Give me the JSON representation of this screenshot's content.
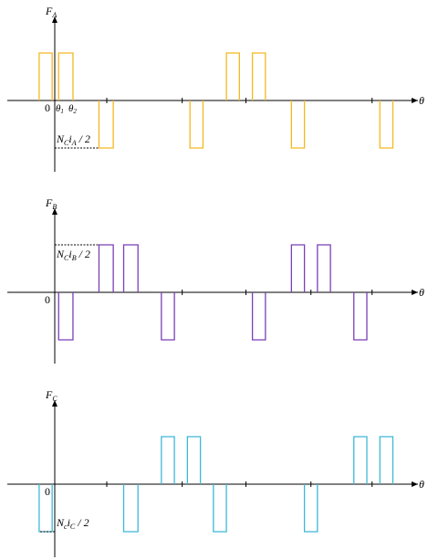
{
  "colors": {
    "a": "#F5B820",
    "b": "#7B3FB8",
    "c": "#3DB8D8",
    "axis": "#000000"
  },
  "panels": [
    {
      "key": "a",
      "axis_letter": "F",
      "axis_sub": "A",
      "origin": "0",
      "theta1": "θ",
      "theta1_sub": "1",
      "theta2": "θ",
      "theta2_sub": "2",
      "level": {
        "N": "N",
        "N_sub": "C",
        "i": "i",
        "i_sub": "A",
        "tail": " / 2"
      },
      "x_arrow": "θ",
      "pulses": [
        {
          "x0": -0.6,
          "x1": -0.1,
          "s": 1
        },
        {
          "x0": 0.15,
          "x1": 0.7,
          "s": 1
        },
        {
          "x0": 1.7,
          "x1": 2.25,
          "s": -1
        },
        {
          "x0": 5.2,
          "x1": 5.7,
          "s": -1
        },
        {
          "x0": 6.6,
          "x1": 7.1,
          "s": 1
        },
        {
          "x0": 7.6,
          "x1": 8.1,
          "s": 1
        },
        {
          "x0": 9.1,
          "x1": 9.6,
          "s": -1
        },
        {
          "x0": 12.5,
          "x1": 13.0,
          "s": -1
        }
      ],
      "ticks": [
        2.0,
        4.9,
        7.35,
        12.2
      ],
      "level_sign": -1
    },
    {
      "key": "b",
      "axis_letter": "F",
      "axis_sub": "B",
      "origin": "0",
      "level": {
        "N": "N",
        "N_sub": "C",
        "i": "i",
        "i_sub": "B",
        "tail": " / 2"
      },
      "x_arrow": "θ",
      "pulses": [
        {
          "x0": 0.15,
          "x1": 0.7,
          "s": -1
        },
        {
          "x0": 1.7,
          "x1": 2.25,
          "s": 1
        },
        {
          "x0": 2.65,
          "x1": 3.2,
          "s": 1
        },
        {
          "x0": 4.1,
          "x1": 4.6,
          "s": -1
        },
        {
          "x0": 7.6,
          "x1": 8.1,
          "s": -1
        },
        {
          "x0": 9.1,
          "x1": 9.6,
          "s": 1
        },
        {
          "x0": 10.1,
          "x1": 10.6,
          "s": 1
        },
        {
          "x0": 11.5,
          "x1": 12.0,
          "s": -1
        }
      ],
      "ticks": [
        4.9,
        7.35,
        9.85,
        12.2
      ],
      "level_sign": 1
    },
    {
      "key": "c",
      "axis_letter": "F",
      "axis_sub": "C",
      "origin": "0",
      "level": {
        "N": "N",
        "N_sub": "c",
        "i": "i",
        "i_sub": "C",
        "tail": " / 2"
      },
      "x_arrow": "θ",
      "pulses": [
        {
          "x0": -0.6,
          "x1": -0.1,
          "s": -1
        },
        {
          "x0": 2.65,
          "x1": 3.2,
          "s": -1
        },
        {
          "x0": 4.1,
          "x1": 4.6,
          "s": 1
        },
        {
          "x0": 5.1,
          "x1": 5.6,
          "s": 1
        },
        {
          "x0": 6.1,
          "x1": 6.6,
          "s": -1
        },
        {
          "x0": 9.6,
          "x1": 10.1,
          "s": -1
        },
        {
          "x0": 11.5,
          "x1": 12.0,
          "s": 1
        },
        {
          "x0": 12.5,
          "x1": 13.0,
          "s": 1
        }
      ],
      "ticks": [
        2.0,
        4.9,
        7.35,
        9.85,
        12.2
      ],
      "level_sign": -1
    }
  ]
}
